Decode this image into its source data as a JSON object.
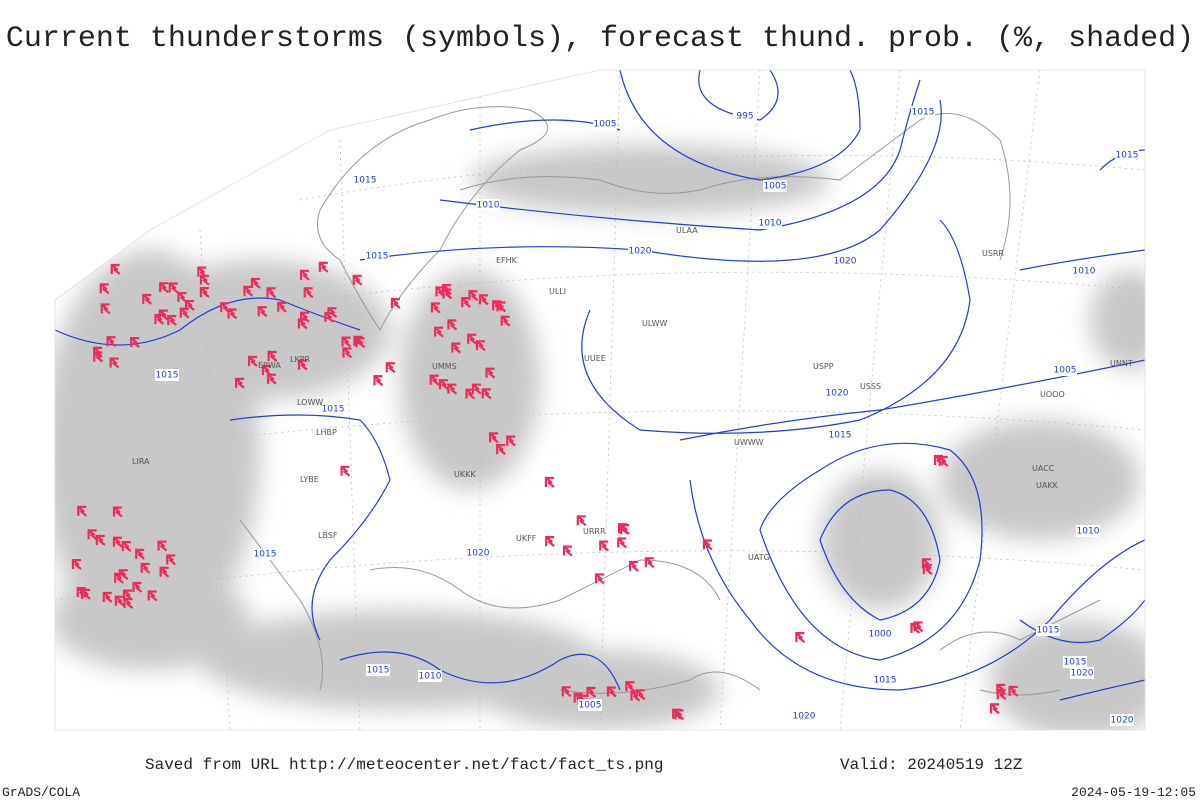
{
  "header": {
    "title": "Current thunderstorms (symbols), forecast thund. prob. (%, shaded)"
  },
  "footer": {
    "saved": "Saved from URL http://meteocenter.net/fact/fact_ts.png",
    "valid": "Valid: 20240519 12Z",
    "credit": "GrADS/COLA",
    "timestamp": "2024-05-19-12:05"
  },
  "isobar_labels": [
    "995",
    "1005",
    "1005",
    "1010",
    "1010",
    "1015",
    "1015",
    "1020",
    "1020",
    "1015",
    "1015",
    "1010",
    "1015",
    "1015",
    "1020",
    "1015",
    "1015",
    "1020",
    "1015",
    "1010",
    "1005",
    "1000",
    "1010",
    "1015",
    "1020",
    "1005",
    "1015",
    "1020",
    "1015",
    "1020"
  ],
  "stations": [
    "ULAA",
    "EFHK",
    "ULLI",
    "UUEE",
    "UMMS",
    "EPWA",
    "LKPR",
    "LOWW",
    "LHBP",
    "LIRA",
    "LYBE",
    "LBSF",
    "UKKK",
    "UKFF",
    "URRR",
    "UACC",
    "UAKK",
    "UATG",
    "USSS",
    "USRR",
    "ULWW",
    "UWWW",
    "USPP",
    "UOOO",
    "UNNT"
  ]
}
